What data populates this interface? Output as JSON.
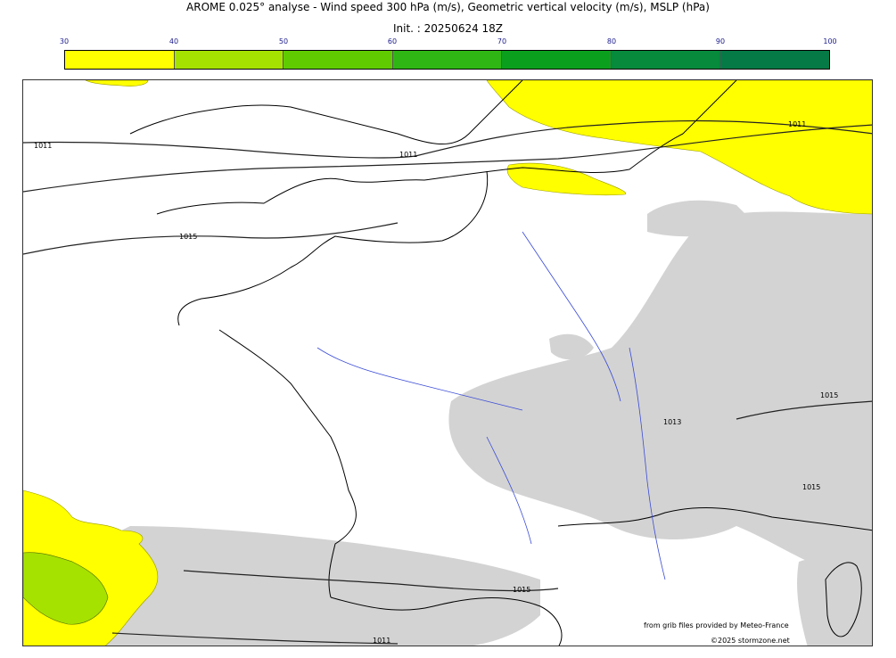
{
  "title": {
    "line1": "AROME 0.025° analyse - Wind speed 300 hPa (m/s), Geometric vertical velocity (m/s), MSLP (hPa)",
    "line2": "Init. : 20250624 18Z"
  },
  "colorbar": {
    "ticks": [
      "30",
      "40",
      "50",
      "60",
      "70",
      "80",
      "90",
      "100"
    ],
    "colors": [
      "#ffff00",
      "#a6e200",
      "#60cc00",
      "#2fb614",
      "#0aa01e",
      "#078a3c",
      "#057a46"
    ]
  },
  "isobars": {
    "l1011a": "1011",
    "l1011b": "1011",
    "l1011c": "1011",
    "l1011d": "1011",
    "l1015a": "1015",
    "l1015b": "1015",
    "l1015c": "1015",
    "l1015d": "1015",
    "l1013": "1013"
  },
  "credits": {
    "source": "from grib files provided by Meteo-France",
    "copyright": "©2025 stormzone.net"
  },
  "colors": {
    "wind_40_50": "#ffff00",
    "wind_50_60": "#a6e200",
    "vv_shade": "#d3d3d3",
    "rivers": "#3a4bd6",
    "coast": "#000000"
  }
}
